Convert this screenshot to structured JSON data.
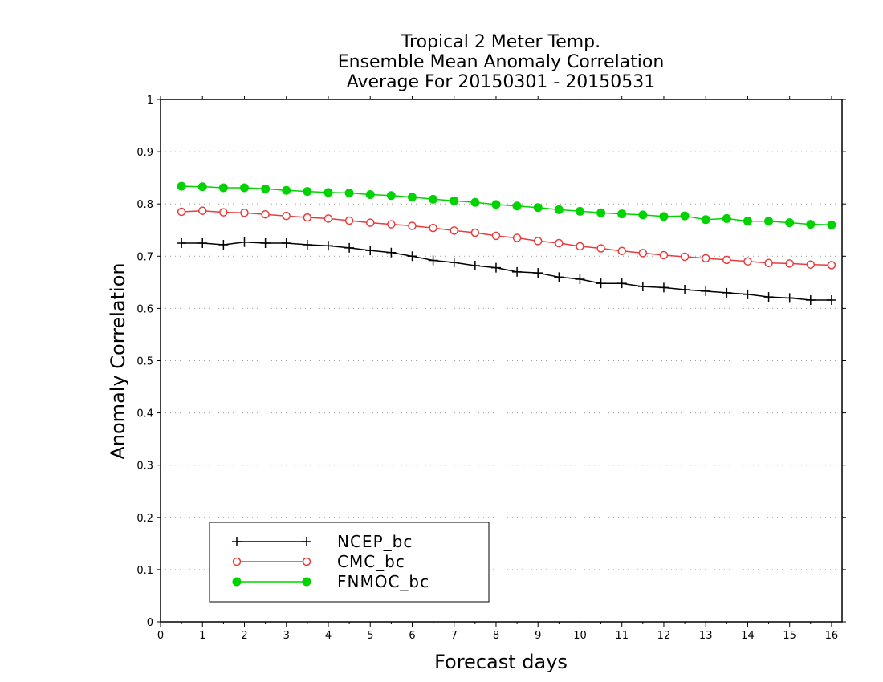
{
  "chart_data": {
    "type": "line",
    "title": [
      "Tropical 2 Meter Temp.",
      "Ensemble Mean Anomaly Correlation",
      "Average For 20150301 - 20150531"
    ],
    "xlabel": "Forecast days",
    "ylabel": "Anomaly Correlation",
    "xlim": [
      0,
      16.25
    ],
    "ylim": [
      0,
      1
    ],
    "xticks": [
      "0",
      "1",
      "2",
      "3",
      "4",
      "5",
      "6",
      "7",
      "8",
      "9",
      "10",
      "11",
      "12",
      "13",
      "14",
      "15",
      "16"
    ],
    "yticks": [
      "0",
      "0.1",
      "0.2",
      "0.3",
      "0.4",
      "0.5",
      "0.6",
      "0.7",
      "0.8",
      "0.9",
      "1"
    ],
    "grid": true,
    "legend_position": "bottom-left",
    "x": [
      0.5,
      1,
      1.5,
      2,
      2.5,
      3,
      3.5,
      4,
      4.5,
      5,
      5.5,
      6,
      6.5,
      7,
      7.5,
      8,
      8.5,
      9,
      9.5,
      10,
      10.5,
      11,
      11.5,
      12,
      12.5,
      13,
      13.5,
      14,
      14.5,
      15,
      15.5,
      16
    ],
    "series": [
      {
        "name": "NCEP_bc",
        "color": "#000000",
        "marker": "plus",
        "values": [
          0.725,
          0.725,
          0.722,
          0.727,
          0.725,
          0.725,
          0.722,
          0.72,
          0.716,
          0.711,
          0.707,
          0.7,
          0.692,
          0.688,
          0.682,
          0.678,
          0.67,
          0.668,
          0.66,
          0.656,
          0.648,
          0.648,
          0.642,
          0.64,
          0.636,
          0.633,
          0.63,
          0.627,
          0.622,
          0.62,
          0.616,
          0.616
        ]
      },
      {
        "name": "CMC_bc",
        "color": "#e83c3c",
        "marker": "open-circle",
        "values": [
          0.785,
          0.787,
          0.784,
          0.783,
          0.78,
          0.777,
          0.774,
          0.772,
          0.768,
          0.764,
          0.761,
          0.758,
          0.754,
          0.749,
          0.745,
          0.739,
          0.735,
          0.729,
          0.725,
          0.719,
          0.715,
          0.71,
          0.706,
          0.702,
          0.699,
          0.696,
          0.693,
          0.69,
          0.687,
          0.686,
          0.684,
          0.683
        ]
      },
      {
        "name": "FNMOC_bc",
        "color": "#00d400",
        "marker": "filled-circle",
        "values": [
          0.834,
          0.833,
          0.831,
          0.831,
          0.829,
          0.826,
          0.824,
          0.822,
          0.821,
          0.818,
          0.816,
          0.813,
          0.809,
          0.806,
          0.803,
          0.799,
          0.796,
          0.793,
          0.789,
          0.786,
          0.783,
          0.781,
          0.779,
          0.776,
          0.777,
          0.77,
          0.772,
          0.767,
          0.767,
          0.764,
          0.761,
          0.76
        ]
      }
    ]
  }
}
